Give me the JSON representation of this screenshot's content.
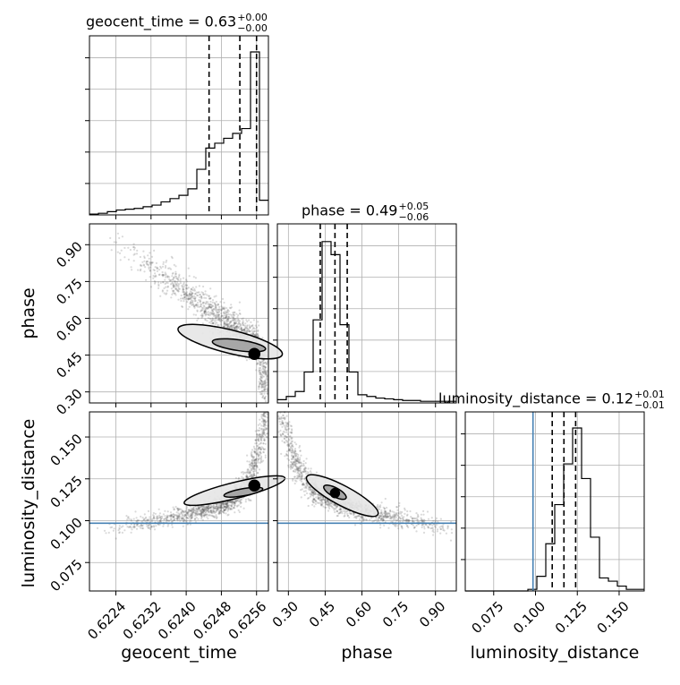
{
  "chart_data": {
    "type": "corner",
    "parameters": [
      "geocent_time",
      "phase",
      "luminosity_distance"
    ],
    "ranges": {
      "geocent_time": [
        0.6218,
        0.62587
      ],
      "phase": [
        0.255,
        0.985
      ],
      "luminosity_distance": [
        0.058,
        0.165
      ]
    },
    "ticks": {
      "geocent_time": [
        "0.6224",
        "0.6232",
        "0.6240",
        "0.6248",
        "0.6256"
      ],
      "phase": [
        "0.30",
        "0.45",
        "0.60",
        "0.75",
        "0.90"
      ],
      "luminosity_distance": [
        "0.075",
        "0.100",
        "0.125",
        "0.150"
      ]
    },
    "truth": {
      "luminosity_distance": 0.0985
    },
    "titles": {
      "geocent_time": {
        "label": "geocent_time = 0.63",
        "plus": "+0.00",
        "minus": "−0.00"
      },
      "phase": {
        "label": "phase = 0.49",
        "plus": "+0.05",
        "minus": "−0.06"
      },
      "luminosity_distance": {
        "label": "luminosity_distance = 0.12",
        "plus": "+0.01",
        "minus": "−0.01"
      }
    },
    "quantiles": {
      "geocent_time": [
        0.62452,
        0.62522,
        0.6256
      ],
      "phase": [
        0.43,
        0.49,
        0.54
      ],
      "luminosity_distance": [
        0.11,
        0.117,
        0.124
      ]
    },
    "histograms": {
      "geocent_time": {
        "edges_min": 0.6218,
        "edges_max": 0.62587,
        "counts": [
          0.005,
          0.01,
          0.02,
          0.03,
          0.035,
          0.04,
          0.05,
          0.06,
          0.08,
          0.1,
          0.12,
          0.16,
          0.28,
          0.41,
          0.44,
          0.47,
          0.5,
          0.53,
          1.0,
          0.09
        ]
      },
      "phase": {
        "edges_min": 0.255,
        "edges_max": 0.985,
        "counts": [
          0.02,
          0.04,
          0.07,
          0.19,
          0.51,
          0.99,
          0.91,
          0.48,
          0.19,
          0.05,
          0.04,
          0.03,
          0.025,
          0.02,
          0.015,
          0.015,
          0.01,
          0.01,
          0.01,
          0.01
        ]
      },
      "luminosity_distance": {
        "edges_min": 0.058,
        "edges_max": 0.165,
        "counts": [
          0,
          0,
          0,
          0,
          0,
          0,
          0,
          0.01,
          0.09,
          0.29,
          0.53,
          0.78,
          1.0,
          0.69,
          0.33,
          0.08,
          0.06,
          0.03,
          0.01,
          0.01
        ]
      }
    },
    "scatter_color": "#555555",
    "truth_color": "#4682b4"
  }
}
